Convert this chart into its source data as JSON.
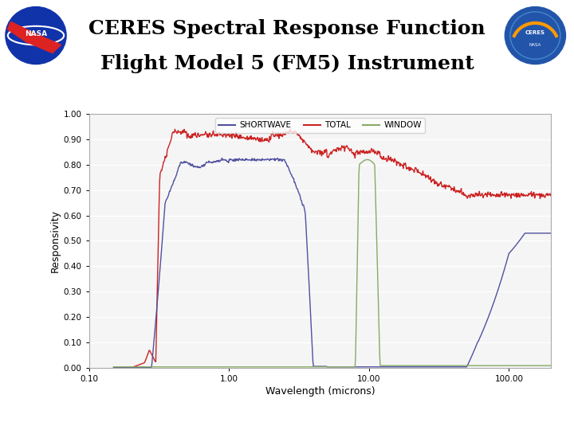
{
  "title_line1": "CERES Spectral Response Function",
  "title_line2": "Flight Model 5 (FM5) Instrument",
  "xlabel": "Wavelength (microns)",
  "ylabel": "Responsivity",
  "xlim_log": [
    0.1,
    200
  ],
  "ylim": [
    0.0,
    1.0
  ],
  "yticks": [
    0.0,
    0.1,
    0.2,
    0.3,
    0.4,
    0.5,
    0.6,
    0.7,
    0.8,
    0.9,
    1.0
  ],
  "xtick_labels": [
    "0.10",
    "1.00",
    "10.00",
    "100.00"
  ],
  "legend_labels": [
    "SHORTWAVE",
    "TOTAL",
    "WINDOW"
  ],
  "shortwave_color": "#5050a0",
  "total_color": "#cc2222",
  "window_color": "#88aa66",
  "bg_color": "#f5f5f5",
  "plot_border_color": "#cccccc",
  "title_fontsize": 18,
  "axis_fontsize": 9,
  "legend_fontsize": 7.5,
  "tick_fontsize": 7.5
}
